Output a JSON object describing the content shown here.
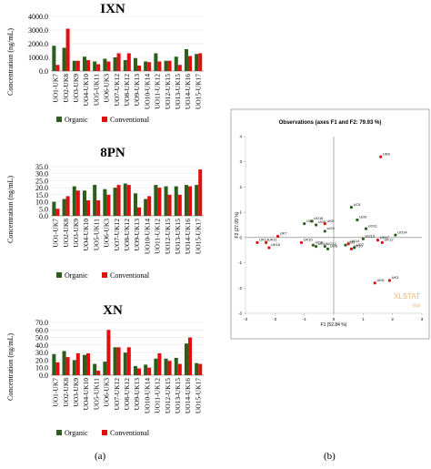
{
  "panel_a_label": "(a)",
  "panel_b_label": "(b)",
  "legend": {
    "organic": "Organic",
    "conventional": "Conventional",
    "organic_color": "#2e5e1e",
    "conventional_color": "#e01010"
  },
  "scatter_watermark": {
    "text": "XLSTAT",
    "sub": "trial"
  },
  "chart_data": [
    {
      "type": "bar",
      "title": "IXN",
      "ylabel": "Concentration (ng/mL)",
      "ylim": [
        0,
        4000
      ],
      "yticks": [
        "0.0",
        "1000.0",
        "2000.0",
        "3000.0",
        "4000.0"
      ],
      "categories": [
        "UO1-UK7",
        "UO2-UK8",
        "UO3-UK9",
        "UO4-UK10",
        "UO5-UK11",
        "UO6-UK3",
        "UO7-UK12",
        "UO8-UK12",
        "UO9-UK13",
        "UO10-UK14",
        "UO11-UK12",
        "UO12-UK15",
        "UO13-UK15",
        "UO14-UK16",
        "UO15-UK17"
      ],
      "series": [
        {
          "name": "Organic",
          "values": [
            1850,
            1700,
            750,
            1050,
            700,
            900,
            1000,
            800,
            950,
            700,
            1300,
            750,
            1050,
            1600,
            1250
          ]
        },
        {
          "name": "Conventional",
          "values": [
            450,
            3100,
            750,
            800,
            500,
            700,
            1300,
            1300,
            400,
            650,
            700,
            750,
            450,
            1100,
            1300
          ]
        }
      ]
    },
    {
      "type": "bar",
      "title": "8PN",
      "ylabel": "Concentration (ng/mL)",
      "ylim": [
        0,
        35
      ],
      "yticks": [
        "0.0",
        "5.0",
        "10.0",
        "15.0",
        "20.0",
        "25.0",
        "30.0",
        "35.0"
      ],
      "categories": [
        "UO1-UK7",
        "UO2-UK8",
        "UO3-UK9",
        "UO4-UK10",
        "UO5-UK11",
        "UO6-UK3",
        "UO7-UK12",
        "UO8-UK12",
        "UO9-UK13",
        "UO10-UK14",
        "UO11-UK12",
        "UO12-UK15",
        "UO13-UK15",
        "UO14-UK16",
        "UO15-UK17"
      ],
      "series": [
        {
          "name": "Organic",
          "values": [
            10,
            12,
            21,
            18,
            22,
            19,
            20,
            23,
            16,
            12,
            22,
            21,
            21,
            22,
            22
          ]
        },
        {
          "name": "Conventional",
          "values": [
            5,
            14,
            18,
            11,
            11,
            15,
            22,
            22,
            6,
            14,
            20,
            15,
            15,
            21,
            33
          ]
        }
      ]
    },
    {
      "type": "bar",
      "title": "XN",
      "ylabel": "Concentration (ng/mL)",
      "ylim": [
        0,
        70
      ],
      "yticks": [
        "0.0",
        "10.0",
        "20.0",
        "30.0",
        "40.0",
        "50.0",
        "60.0",
        "70.0"
      ],
      "categories": [
        "UO1-UK7",
        "UO2-UK8",
        "UO3-UK9",
        "UO4-UK10",
        "UO5-UK11",
        "UO6-UK3",
        "UO7-UK12",
        "UO8-UK12",
        "UO9-UK13",
        "UO10-UK14",
        "UO11-UK12",
        "UO12-UK15",
        "UO13-UK15",
        "UO14-UK16",
        "UO15-UK17"
      ],
      "series": [
        {
          "name": "Organic",
          "values": [
            28,
            32,
            20,
            27,
            15,
            18,
            37,
            30,
            12,
            14,
            22,
            22,
            23,
            42,
            16
          ]
        },
        {
          "name": "Conventional",
          "values": [
            17,
            24,
            29,
            29,
            6,
            60,
            37,
            37,
            9,
            10,
            29,
            19,
            15,
            50,
            15
          ]
        }
      ]
    },
    {
      "type": "scatter",
      "title": "Observations (axes F1 and F2: 79.93 %)",
      "xlabel": "F1 (52.84 %)",
      "ylabel": "F2 (27.09 %)",
      "xlim": [
        -3,
        3
      ],
      "ylim": [
        -3,
        4
      ],
      "xticks": [
        -3,
        -2,
        -1,
        0,
        1,
        2,
        3
      ],
      "yticks": [
        -3,
        -2,
        -1,
        0,
        1,
        2,
        3,
        4
      ],
      "series": [
        {
          "name": "Organic",
          "points": [
            {
              "label": "UO1",
              "x": 0.6,
              "y": 1.2
            },
            {
              "label": "UO2",
              "x": 0.8,
              "y": 0.7
            },
            {
              "label": "UO3",
              "x": 0.4,
              "y": -0.3
            },
            {
              "label": "UO4",
              "x": -0.3,
              "y": 0.25
            },
            {
              "label": "UO5",
              "x": -0.2,
              "y": -0.45
            },
            {
              "label": "UO6",
              "x": -1.0,
              "y": 0.55
            },
            {
              "label": "UO7",
              "x": 0.7,
              "y": -0.4
            },
            {
              "label": "UO8",
              "x": -0.7,
              "y": -0.3
            },
            {
              "label": "UO9",
              "x": -0.6,
              "y": 0.5
            },
            {
              "label": "UO10",
              "x": -0.6,
              "y": -0.35
            },
            {
              "label": "UO11",
              "x": 1.1,
              "y": 0.35
            },
            {
              "label": "UO12",
              "x": -0.3,
              "y": -0.35
            },
            {
              "label": "UO13",
              "x": 1.0,
              "y": -0.05
            },
            {
              "label": "UO14",
              "x": 2.1,
              "y": 0.1
            },
            {
              "label": "UO15",
              "x": -0.75,
              "y": 0.65
            }
          ]
        },
        {
          "name": "Conventional",
          "points": [
            {
              "label": "UK3",
              "x": 1.9,
              "y": -1.7
            },
            {
              "label": "UK7",
              "x": -1.9,
              "y": 0.05
            },
            {
              "label": "UK8",
              "x": 1.6,
              "y": 3.2
            },
            {
              "label": "UK9",
              "x": -0.3,
              "y": 0.55
            },
            {
              "label": "UK10",
              "x": 0.6,
              "y": -0.45
            },
            {
              "label": "UK11",
              "x": -2.3,
              "y": -0.2
            },
            {
              "label": "UK12",
              "x": 1.65,
              "y": -0.2
            },
            {
              "label": "UK13",
              "x": -2.6,
              "y": -0.2
            },
            {
              "label": "UK14",
              "x": 0.5,
              "y": -0.25
            },
            {
              "label": "UK15",
              "x": -1.1,
              "y": -0.2
            },
            {
              "label": "UK16",
              "x": -2.2,
              "y": -0.4
            },
            {
              "label": "UK17",
              "x": 1.5,
              "y": -0.1
            },
            {
              "label": "UK5",
              "x": 1.4,
              "y": -1.8
            }
          ]
        }
      ]
    }
  ]
}
